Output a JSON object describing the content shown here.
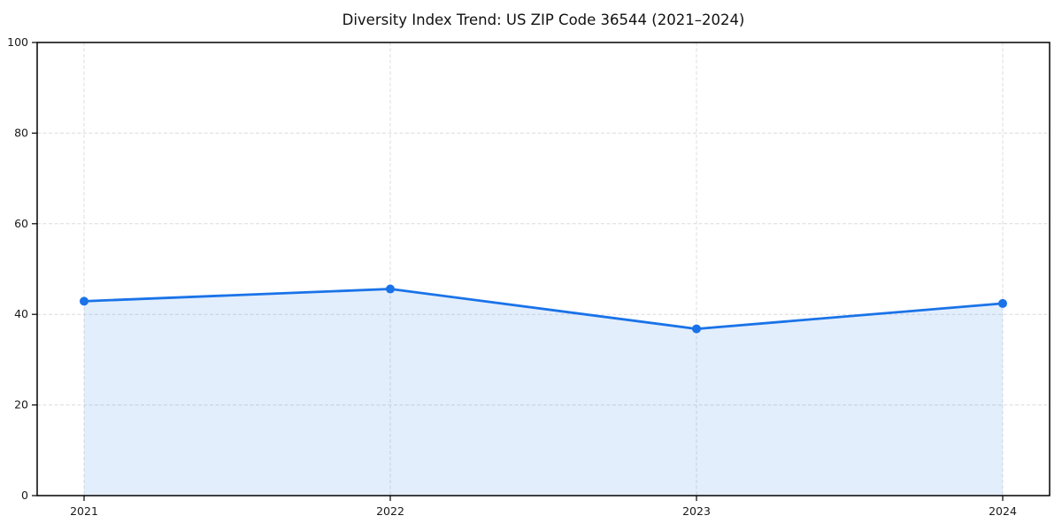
{
  "title": "Diversity Index Trend: US ZIP Code 36544 (2021–2024)",
  "chart_data": {
    "type": "area",
    "title": "Diversity Index Trend: US ZIP Code 36544 (2021–2024)",
    "categories": [
      "2021",
      "2022",
      "2023",
      "2024"
    ],
    "series": [
      {
        "name": "Diversity Index",
        "values": [
          42.9,
          45.6,
          36.8,
          42.4
        ]
      }
    ],
    "xlabel": "",
    "ylabel": "",
    "ylim": [
      0,
      100
    ],
    "yticks": [
      0,
      20,
      40,
      60,
      80,
      100
    ],
    "grid": true,
    "legend_position": "none",
    "line_color": "#1a73e8",
    "fill_color": "rgba(26,115,232,0.12)",
    "marker": "circle",
    "axis_color": "#000000",
    "grid_color": "#dcdcdc",
    "tick_label_color": "#1a1a1a"
  }
}
